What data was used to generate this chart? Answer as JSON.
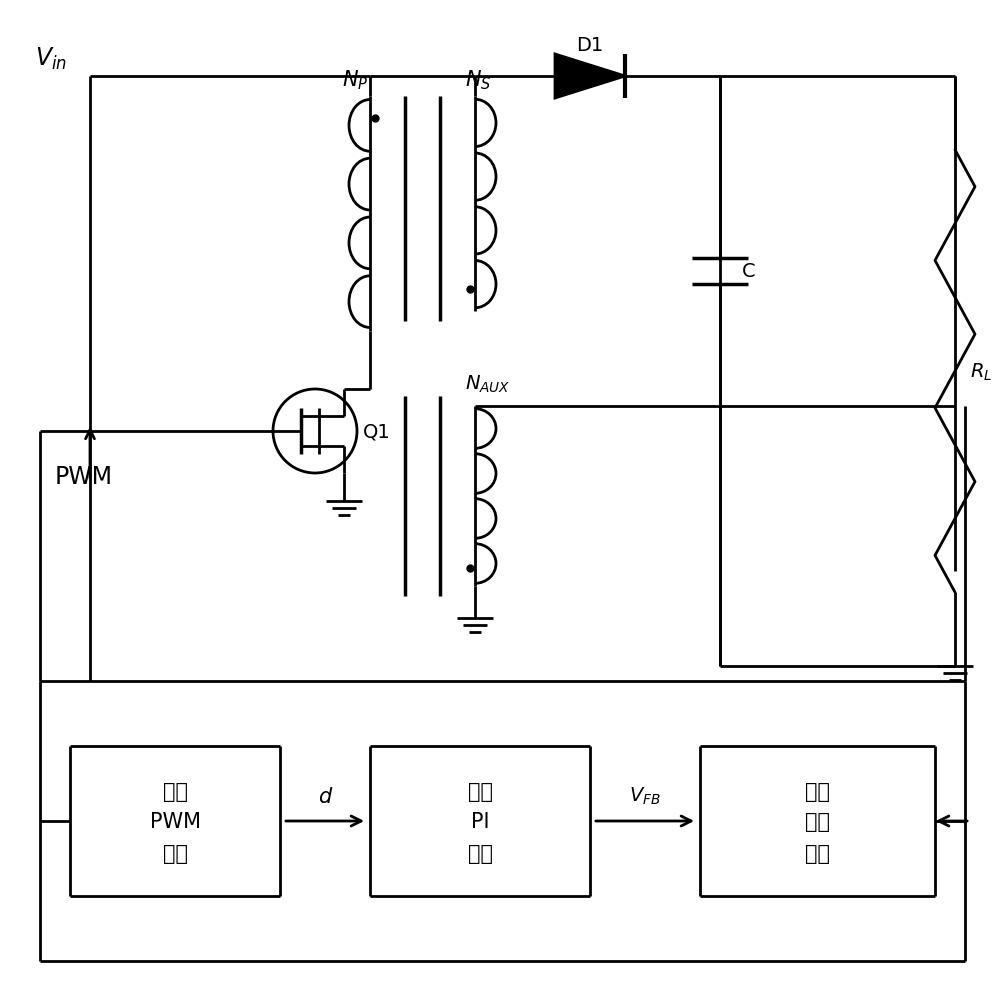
{
  "bg_color": "#ffffff",
  "line_color": "#000000",
  "lw": 2.0,
  "fig_w": 10.0,
  "fig_h": 9.87,
  "xlim": [
    0,
    10
  ],
  "ylim": [
    0,
    9.87
  ]
}
